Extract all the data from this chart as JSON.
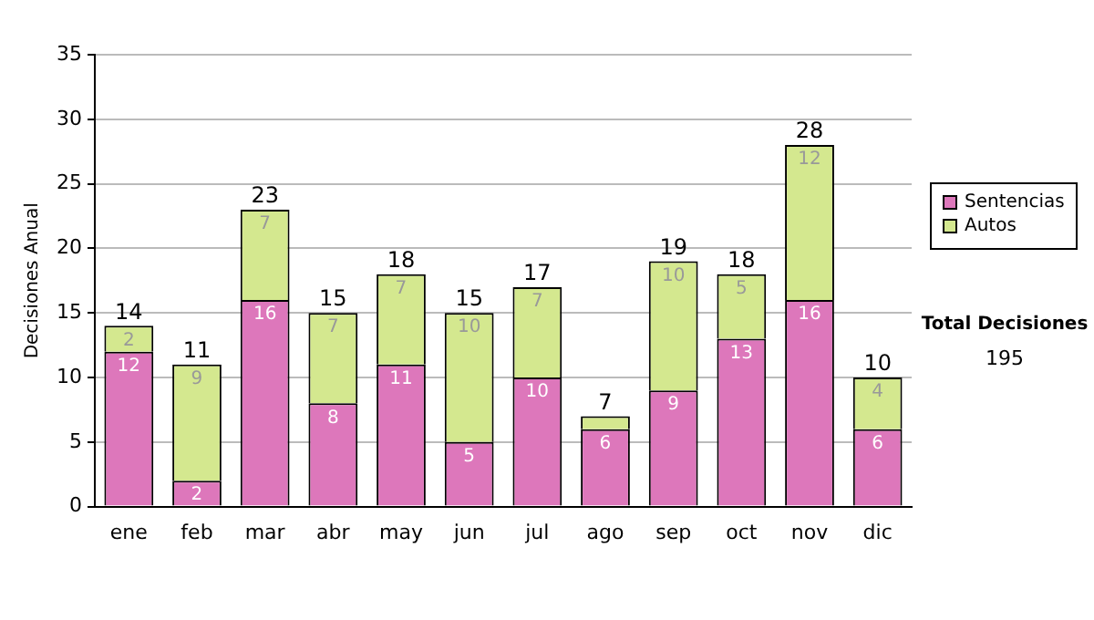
{
  "chart_data": {
    "type": "bar",
    "stacked": true,
    "ylabel": "Decisiones Anual",
    "categories": [
      "ene",
      "feb",
      "mar",
      "abr",
      "may",
      "jun",
      "jul",
      "ago",
      "sep",
      "oct",
      "nov",
      "dic"
    ],
    "series": [
      {
        "name": "Sentencias",
        "color": "#dd77bb",
        "values": [
          12,
          2,
          16,
          8,
          11,
          5,
          10,
          6,
          9,
          13,
          16,
          6
        ],
        "value_labels": [
          "12",
          "2",
          "16",
          "8",
          "11",
          "5",
          "10",
          "6",
          "9",
          "13",
          "16",
          "6"
        ]
      },
      {
        "name": "Autos",
        "color": "#d4e88f",
        "values": [
          2,
          9,
          7,
          7,
          7,
          10,
          7,
          1,
          10,
          5,
          12,
          4
        ],
        "value_labels": [
          "2",
          "9",
          "7",
          "7",
          "7",
          "10",
          "7",
          null,
          "10",
          "5",
          "12",
          "4"
        ]
      }
    ],
    "totals": [
      "14",
      "11",
      "23",
      "15",
      "18",
      "15",
      "17",
      "7",
      "19",
      "18",
      "28",
      "10"
    ],
    "ylim": [
      0,
      35
    ],
    "yticks": [
      0,
      5,
      10,
      15,
      20,
      25,
      30,
      35
    ],
    "grid": "y",
    "legend": "right",
    "annotations": [
      "Total Decisiones",
      "195"
    ]
  }
}
